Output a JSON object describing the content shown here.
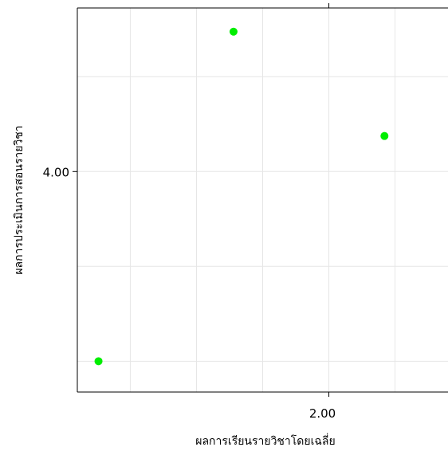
{
  "chart_data": {
    "type": "scatter",
    "title": "",
    "xlabel": "ผลการเรียนรายวิชาโดยเฉลี่ย",
    "ylabel": "ผลการประเมินการสอนรายวิชา",
    "xlim": [
      1.05,
      2.45
    ],
    "ylim": [
      3.07,
      4.69
    ],
    "x_ticks": [
      {
        "value": 2.0,
        "label": "2.00"
      }
    ],
    "y_ticks": [
      {
        "value": 4.0,
        "label": "4.00"
      }
    ],
    "x_minor_grid": [
      1.25,
      1.5,
      1.75,
      2.25
    ],
    "y_minor_grid": [
      3.2,
      3.6,
      4.4
    ],
    "grid": true,
    "legend": "none",
    "point_color": "#00EE00",
    "points": [
      {
        "x": 1.13,
        "y": 3.2
      },
      {
        "x": 1.64,
        "y": 4.59
      },
      {
        "x": 2.21,
        "y": 4.15
      }
    ]
  }
}
